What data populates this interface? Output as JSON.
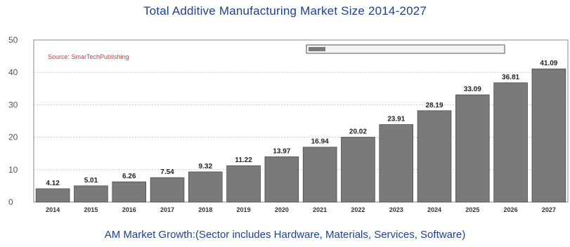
{
  "chart_data": {
    "type": "bar",
    "title": "Total Additive Manufacturing Market Size 2014-2027",
    "caption": "AM Market Growth:(Sector includes Hardware, Materials, Services, Software)",
    "source_note": "Source: SmarTechPublishing",
    "legend_label": "",
    "categories": [
      "2014",
      "2015",
      "2016",
      "2017",
      "2018",
      "2019",
      "2020",
      "2021",
      "2022",
      "2023",
      "2024",
      "2025",
      "2026",
      "2027"
    ],
    "values": [
      4.12,
      5.01,
      6.26,
      7.54,
      9.32,
      11.22,
      13.97,
      16.94,
      20.02,
      23.91,
      28.19,
      33.09,
      36.81,
      41.09
    ],
    "data_labels": [
      "4.12",
      "5.01",
      "6.26",
      "7.54",
      "9.32",
      "11.22",
      "13.97",
      "16.94",
      "20.02",
      "23.91",
      "28.19",
      "33.09",
      "36.81",
      "41.09"
    ],
    "ylim": [
      0,
      50
    ],
    "yticks": [
      "0",
      "10",
      "20",
      "30",
      "40",
      "50"
    ],
    "grid": true,
    "bar_color": "#7a7a7a",
    "title_color": "#1f3f8f"
  }
}
